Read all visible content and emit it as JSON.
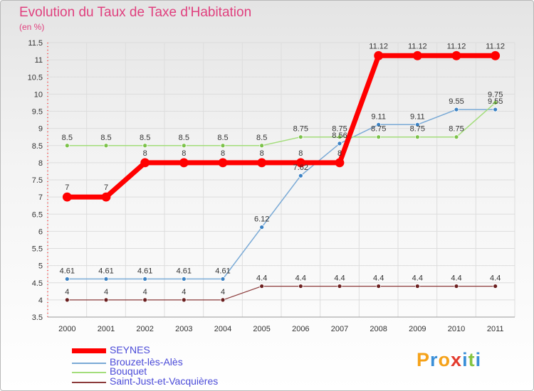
{
  "header": {
    "title": "Evolution du Taux de Taxe d'Habitation",
    "unit": "(en %)"
  },
  "colors": {
    "title": "#e0407e",
    "legend_text": "#4a4ad8",
    "axis_text": "#333333",
    "grid": "#dddddd"
  },
  "logo": {
    "letters": [
      {
        "ch": "P",
        "color": "#f5a21a"
      },
      {
        "ch": "r",
        "color": "#3a8fd8"
      },
      {
        "ch": "o",
        "color": "#f5a21a"
      },
      {
        "ch": "x",
        "color": "#e33b2e"
      },
      {
        "ch": "i",
        "color": "#3a8fd8"
      },
      {
        "ch": "t",
        "color": "#84c441"
      },
      {
        "ch": "i",
        "color": "#3a8fd8"
      }
    ]
  },
  "chart_data": {
    "type": "line",
    "x": [
      "2000",
      "2001",
      "2002",
      "2003",
      "2004",
      "2005",
      "2006",
      "2007",
      "2008",
      "2009",
      "2010",
      "2011"
    ],
    "ylim": [
      3.5,
      11.5
    ],
    "yticks": [
      "3.5",
      "4",
      "4.5",
      "5",
      "5.5",
      "6",
      "6.5",
      "7",
      "7.5",
      "8",
      "8.5",
      "9",
      "9.5",
      "10",
      "10.5",
      "11",
      "11.5"
    ],
    "grid": true,
    "legend_position": "bottom-left",
    "series": [
      {
        "name": "SEYNES",
        "color": "#ff0000",
        "marker": "#ff0000",
        "width": 7,
        "values": [
          7,
          7,
          8,
          8,
          8,
          8,
          8,
          8,
          11.12,
          11.12,
          11.12,
          11.12
        ],
        "labels": [
          "7",
          "7",
          "8",
          "8",
          "8",
          "8",
          "8",
          "8",
          "11.12",
          "11.12",
          "11.12",
          "11.12"
        ]
      },
      {
        "name": "Brouzet-lès-Alès",
        "color": "#7aaad6",
        "marker": "#3b82c4",
        "width": 1.5,
        "values": [
          4.61,
          4.61,
          4.61,
          4.61,
          4.61,
          6.12,
          7.62,
          8.56,
          9.11,
          9.11,
          9.55,
          9.55
        ],
        "labels": [
          "4.61",
          "4.61",
          "4.61",
          "4.61",
          "4.61",
          "6.12",
          "7.62",
          "8.56",
          "9.11",
          "9.11",
          "9.55",
          "9.55"
        ]
      },
      {
        "name": "Bouquet",
        "color": "#a3dd7b",
        "marker": "#7cc24a",
        "width": 1.5,
        "values": [
          8.5,
          8.5,
          8.5,
          8.5,
          8.5,
          8.5,
          8.75,
          8.75,
          8.75,
          8.75,
          8.75,
          9.75
        ],
        "labels": [
          "8.5",
          "8.5",
          "8.5",
          "8.5",
          "8.5",
          "8.5",
          "8.75",
          "8.75",
          "8.75",
          "8.75",
          "8.75",
          "9.75"
        ]
      },
      {
        "name": "Saint-Just-et-Vacquières",
        "color": "#8b3a3a",
        "marker": "#6b1f1f",
        "width": 1.2,
        "values": [
          4,
          4,
          4,
          4,
          4,
          4.4,
          4.4,
          4.4,
          4.4,
          4.4,
          4.4,
          4.4
        ],
        "labels": [
          "4",
          "4",
          "4",
          "4",
          "4",
          "4.4",
          "4.4",
          "4.4",
          "4.4",
          "4.4",
          "4.4",
          "4.4"
        ]
      }
    ]
  }
}
